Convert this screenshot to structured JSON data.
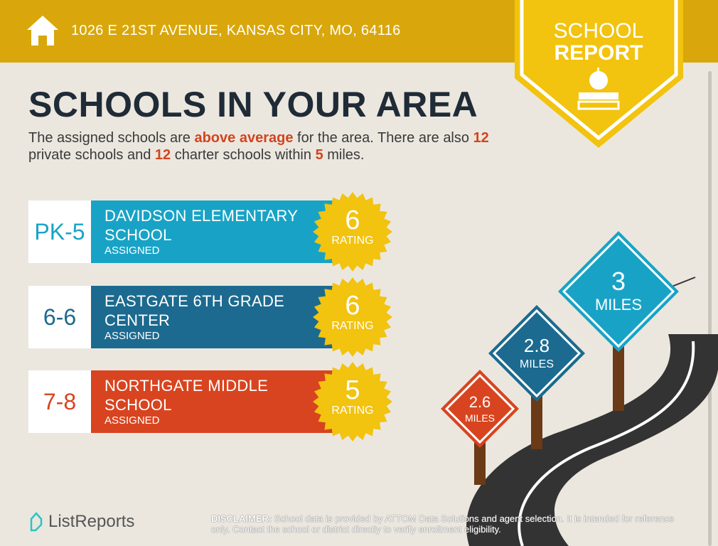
{
  "header": {
    "address": "1026 E 21ST AVENUE, KANSAS CITY, MO, 64116",
    "icon": "home-icon"
  },
  "badge": {
    "line1": "SCHOOL",
    "line2": "REPORT",
    "icon": "apple-books-icon"
  },
  "title": "SCHOOLS IN YOUR AREA",
  "intro": {
    "p1": "The assigned schools are ",
    "hl1": "above average",
    "p2": " for the area. There are also ",
    "n1": "12",
    "p3": " private schools and ",
    "n2": "12",
    "p4": " charter schools within ",
    "n3": "5",
    "p5": " miles."
  },
  "schools": [
    {
      "grade": "PK-5",
      "name": "DAVIDSON ELEMENTARY SCHOOL",
      "status": "ASSIGNED",
      "rating": "6",
      "rating_label": "RATING",
      "color": "#18a3c6"
    },
    {
      "grade": "6-6",
      "name": "EASTGATE 6TH GRADE CENTER",
      "status": "ASSIGNED",
      "rating": "6",
      "rating_label": "RATING",
      "color": "#1c6a8f"
    },
    {
      "grade": "7-8",
      "name": "NORTHGATE MIDDLE SCHOOL",
      "status": "ASSIGNED",
      "rating": "5",
      "rating_label": "RATING",
      "color": "#d8441f"
    }
  ],
  "signs": [
    {
      "value": "3",
      "unit": "MILES",
      "color": "#18a3c6"
    },
    {
      "value": "2.8",
      "unit": "MILES",
      "color": "#1c6a8f"
    },
    {
      "value": "2.6",
      "unit": "MILES",
      "color": "#d8441f"
    }
  ],
  "footer": {
    "logo": "ListReports",
    "disclaimer_label": "DISCLAIMER:",
    "disclaimer": " School data is provided by ATTOM Data Solutions and agent selection. It is intended for reference only. Contact the school or district directly to verify enrollment eligibility."
  }
}
